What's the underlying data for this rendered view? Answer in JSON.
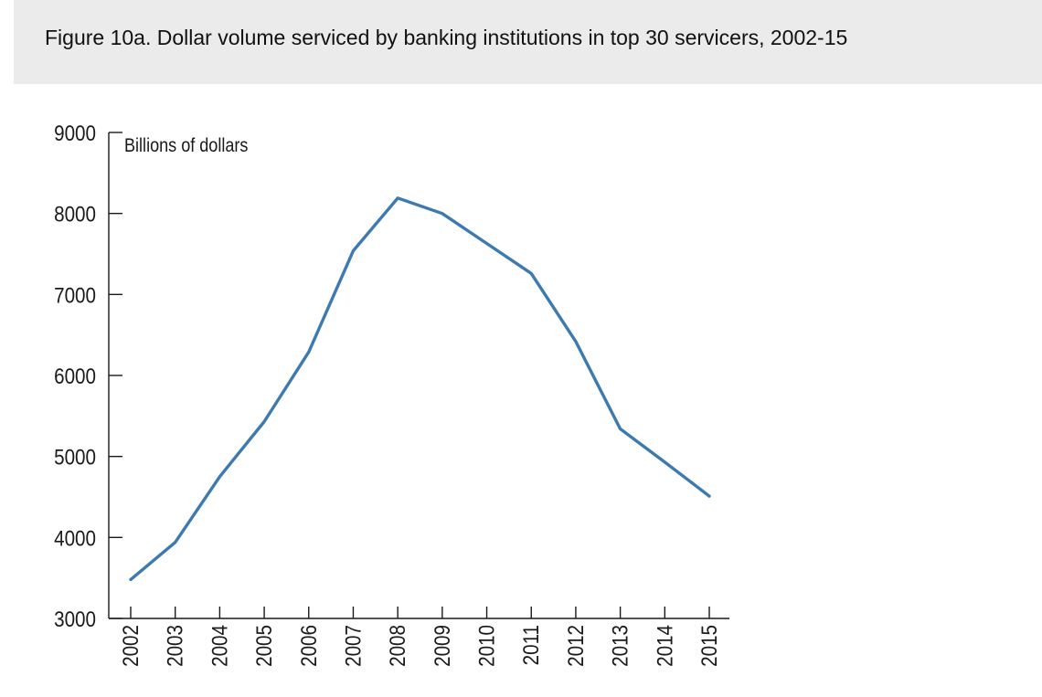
{
  "chart_data": {
    "type": "line",
    "title": "Figure 10a. Dollar volume serviced by banking institutions in top 30 servicers, 2002-15",
    "unit_label": "Billions of dollars",
    "xlabel": "",
    "ylabel": "",
    "x": [
      "2002",
      "2003",
      "2004",
      "2005",
      "2006",
      "2007",
      "2008",
      "2009",
      "2010",
      "2011",
      "2012",
      "2013",
      "2014",
      "2015"
    ],
    "y_ticks": [
      3000,
      4000,
      5000,
      6000,
      7000,
      8000,
      9000
    ],
    "ylim": [
      3000,
      9000
    ],
    "series": [
      {
        "values": [
          3480,
          3940,
          4750,
          5430,
          6290,
          7540,
          8190,
          8000,
          7630,
          7260,
          6420,
          5340,
          4930,
          4510
        ]
      }
    ],
    "line_color": "#3c7ab0",
    "grid": false,
    "legend": "none"
  }
}
